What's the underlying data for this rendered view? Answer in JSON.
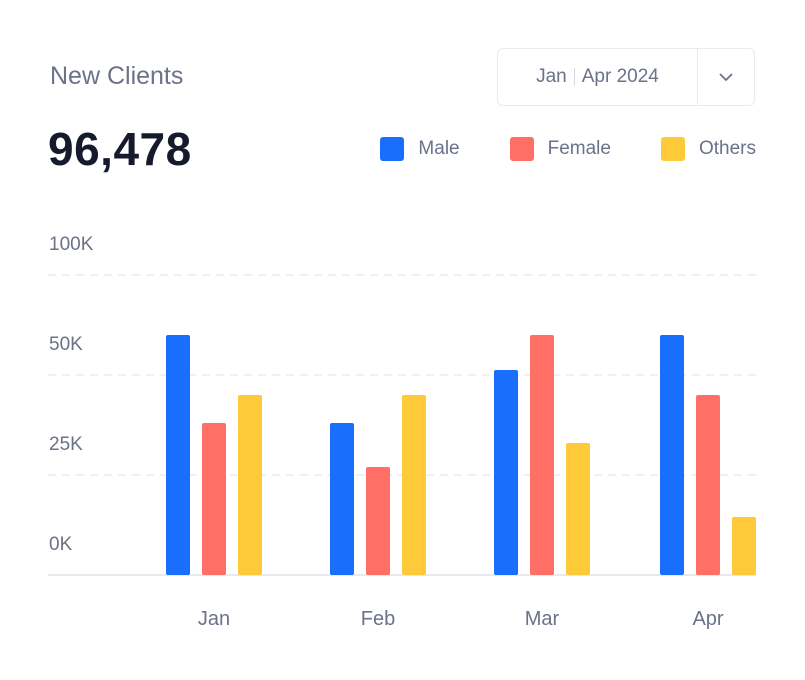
{
  "header": {
    "title": "New Clients",
    "total": "96,478"
  },
  "date_range": {
    "start": "Jan",
    "end": "Apr 2024",
    "dropdown_icon": "chevron-down-icon"
  },
  "chart_data": {
    "type": "bar",
    "categories": [
      "Jan",
      "Feb",
      "Mar",
      "Apr"
    ],
    "y_ticks": [
      {
        "label": "0K",
        "value": 0
      },
      {
        "label": "25K",
        "value": 25000
      },
      {
        "label": "50K",
        "value": 50000
      },
      {
        "label": "100K",
        "value": 100000
      }
    ],
    "series": [
      {
        "name": "Male",
        "color": "#1a6efc",
        "values": [
          70000,
          38000,
          52500,
          70000
        ]
      },
      {
        "name": "Female",
        "color": "#ff6f65",
        "values": [
          38000,
          27000,
          70000,
          45000
        ]
      },
      {
        "name": "Others",
        "color": "#ffca3a",
        "values": [
          45000,
          45000,
          33000,
          14500
        ]
      }
    ],
    "grid": true,
    "legend_position": "top-right"
  }
}
